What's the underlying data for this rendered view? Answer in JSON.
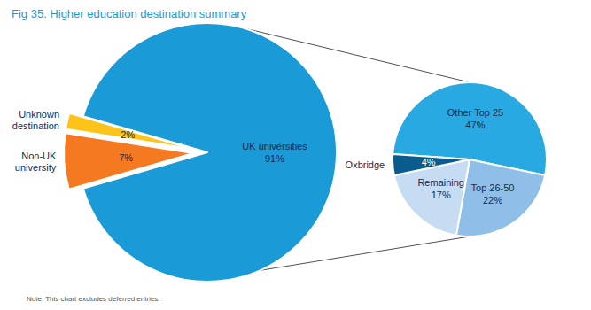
{
  "chart_data": [
    {
      "type": "pie",
      "title": "Fig 35. Higher education destination summary",
      "categories": [
        "UK universities",
        "Non-UK university",
        "Unknown destination"
      ],
      "values": [
        91,
        7,
        2
      ],
      "value_labels": [
        "91%",
        "7%",
        "2%"
      ],
      "colors": [
        "#1a9ad6",
        "#f47920",
        "#fcc419"
      ],
      "data_labels": true,
      "annotations": [
        "Note: This chart excludes deferred entries."
      ]
    },
    {
      "type": "pie",
      "categories": [
        "Other Top 25",
        "Top 26-50",
        "Remaining",
        "Oxbridge"
      ],
      "values": [
        47,
        22,
        17,
        4
      ],
      "value_labels": [
        "47%",
        "22%",
        "17%",
        "4%"
      ],
      "colors": [
        "#29a9e1",
        "#8fbfe8",
        "#c5dcf2",
        "#0b5c8e"
      ],
      "data_labels": true
    }
  ]
}
